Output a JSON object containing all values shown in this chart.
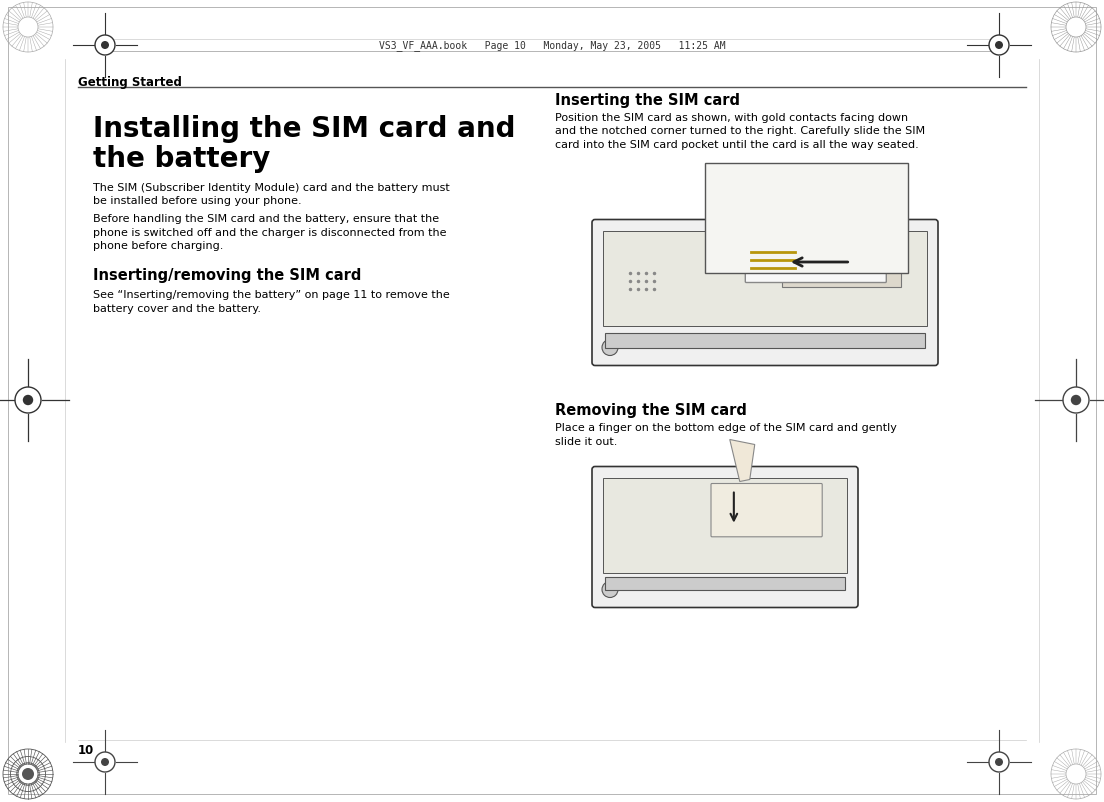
{
  "bg_color": "#ffffff",
  "header_bar_text": "VS3_VF_AAA.book   Page 10   Monday, May 23, 2005   11:25 AM",
  "section_label": "Getting Started",
  "title_line1": "Installing the SIM card and",
  "title_line2": "the battery",
  "body1a": "The SIM (Subscriber Identity Module) card and the battery must",
  "body1b": "be installed before using your phone.",
  "body2a": "Before handling the SIM card and the battery, ensure that the",
  "body2b": "phone is switched off and the charger is disconnected from the",
  "body2c": "phone before charging.",
  "subhead1": "Inserting/removing the SIM card",
  "body3a": "See “Inserting/removing the battery” on page 11 to remove the",
  "body3b": "battery cover and the battery.",
  "subhead2": "Inserting the SIM card",
  "body4a": "Position the SIM card as shown, with gold contacts facing down",
  "body4b": "and the notched corner turned to the right. Carefully slide the SIM",
  "body4c": "card into the SIM card pocket until the card is all the way seated.",
  "subhead3": "Removing the SIM card",
  "body5a": "Place a finger on the bottom edge of the SIM card and gently",
  "body5b": "slide it out.",
  "page_number": "10",
  "text_color": "#000000",
  "title_fontsize": 20,
  "section_fontsize": 8.5,
  "subhead_fontsize": 10.5,
  "body_fontsize": 8.0,
  "header_fontsize": 7.0,
  "page_num_fontsize": 8.5
}
